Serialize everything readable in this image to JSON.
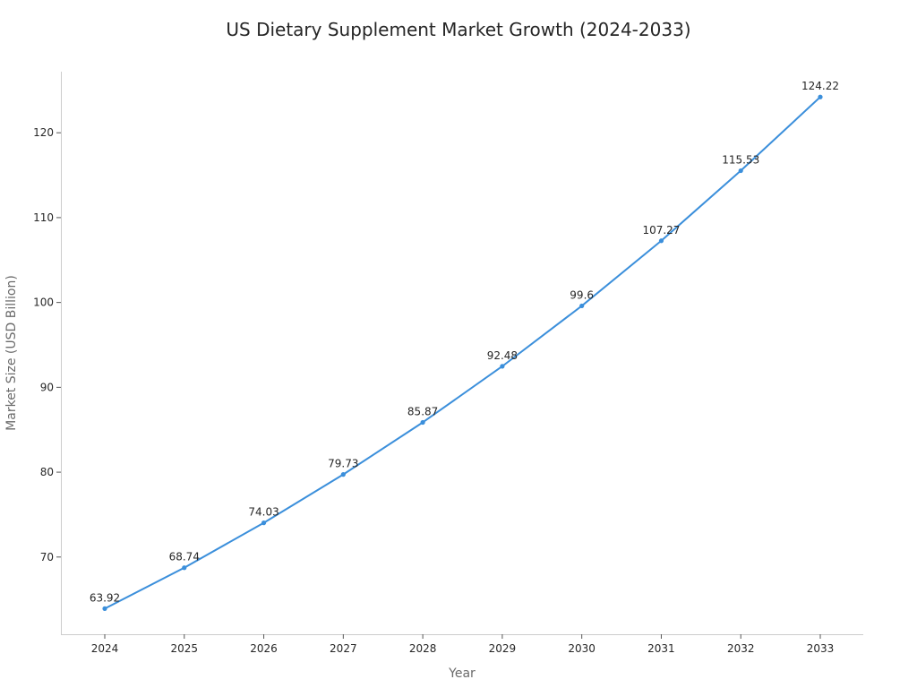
{
  "chart_data": {
    "type": "line",
    "title": "US Dietary Supplement Market Growth (2024-2033)",
    "xlabel": "Year",
    "ylabel": "Market Size (USD Billion)",
    "x": [
      "2024",
      "2025",
      "2026",
      "2027",
      "2028",
      "2029",
      "2030",
      "2031",
      "2032",
      "2033"
    ],
    "series": [
      {
        "values": [
          63.92,
          68.74,
          74.03,
          79.73,
          85.87,
          92.48,
          99.6,
          107.27,
          115.53,
          124.22
        ],
        "color": "#3b8fdb"
      }
    ],
    "data_labels": [
      "63.92",
      "68.74",
      "74.03",
      "79.73",
      "85.87",
      "92.48",
      "99.6",
      "107.27",
      "115.53",
      "124.22"
    ],
    "yticks": [
      70,
      80,
      90,
      100,
      110,
      120
    ],
    "ylim": [
      60.9,
      127.2
    ],
    "grid": false,
    "axis_color": "#cccccc"
  }
}
